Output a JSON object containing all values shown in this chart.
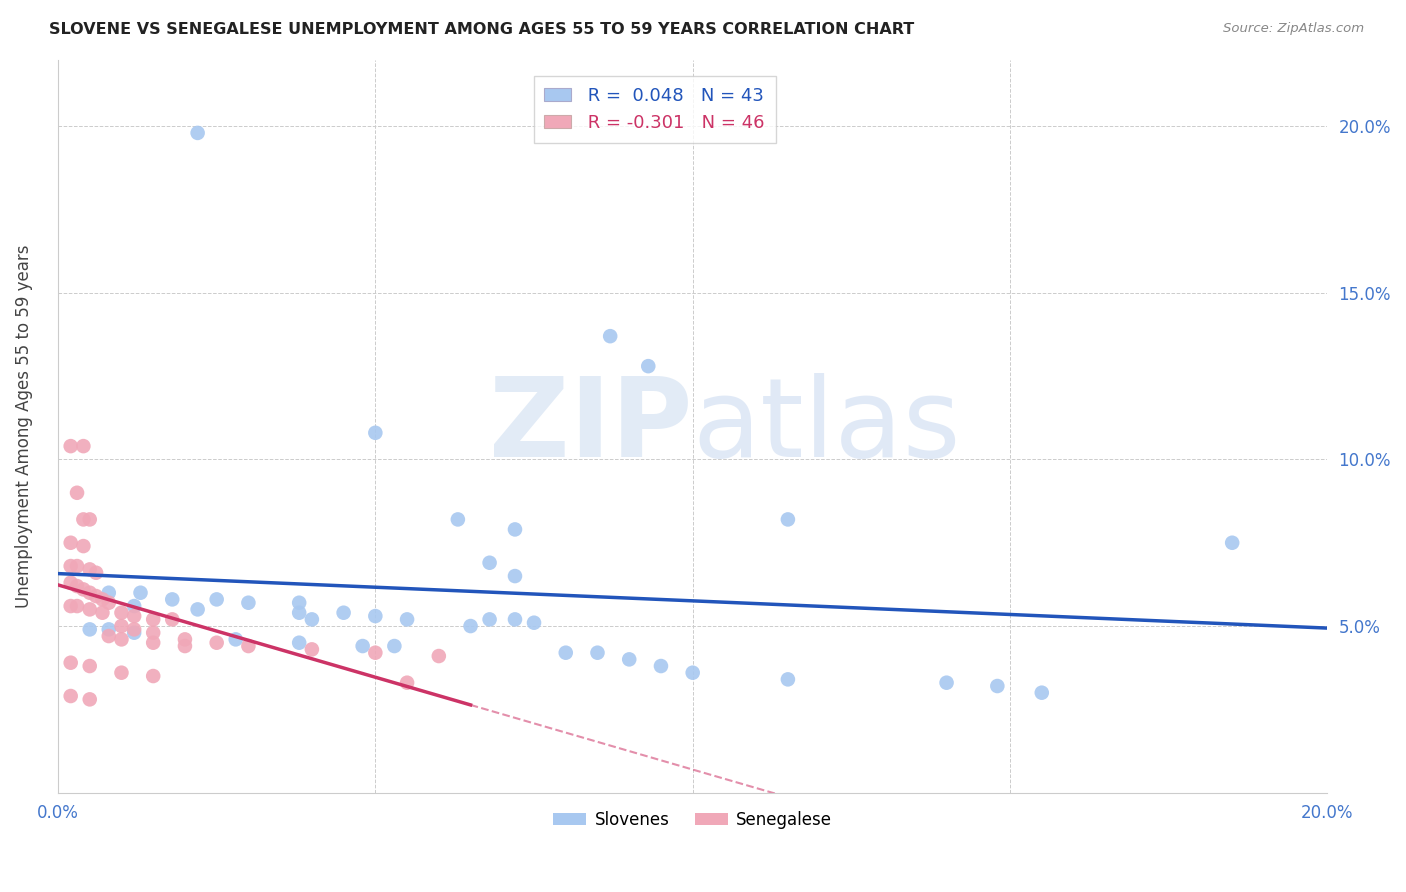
{
  "title": "SLOVENE VS SENEGALESE UNEMPLOYMENT AMONG AGES 55 TO 59 YEARS CORRELATION CHART",
  "source": "Source: ZipAtlas.com",
  "ylabel": "Unemployment Among Ages 55 to 59 years",
  "xlim": [
    0.0,
    0.2
  ],
  "ylim": [
    0.0,
    0.22
  ],
  "background_color": "#ffffff",
  "slovene_color": "#a8c8f0",
  "senegalese_color": "#f0a8b8",
  "slovene_line_color": "#2255bb",
  "senegalese_line_color": "#cc3366",
  "slovene_R": 0.048,
  "slovene_N": 43,
  "senegalese_R": -0.301,
  "senegalese_N": 46,
  "slovene_points": [
    [
      0.022,
      0.198
    ],
    [
      0.05,
      0.108
    ],
    [
      0.087,
      0.137
    ],
    [
      0.093,
      0.128
    ],
    [
      0.063,
      0.082
    ],
    [
      0.072,
      0.079
    ],
    [
      0.115,
      0.082
    ],
    [
      0.068,
      0.069
    ],
    [
      0.072,
      0.065
    ],
    [
      0.008,
      0.06
    ],
    [
      0.013,
      0.06
    ],
    [
      0.018,
      0.058
    ],
    [
      0.025,
      0.058
    ],
    [
      0.03,
      0.057
    ],
    [
      0.038,
      0.057
    ],
    [
      0.012,
      0.056
    ],
    [
      0.022,
      0.055
    ],
    [
      0.038,
      0.054
    ],
    [
      0.045,
      0.054
    ],
    [
      0.05,
      0.053
    ],
    [
      0.055,
      0.052
    ],
    [
      0.065,
      0.05
    ],
    [
      0.005,
      0.049
    ],
    [
      0.008,
      0.049
    ],
    [
      0.012,
      0.048
    ],
    [
      0.028,
      0.046
    ],
    [
      0.038,
      0.045
    ],
    [
      0.048,
      0.044
    ],
    [
      0.053,
      0.044
    ],
    [
      0.08,
      0.042
    ],
    [
      0.085,
      0.042
    ],
    [
      0.09,
      0.04
    ],
    [
      0.095,
      0.038
    ],
    [
      0.1,
      0.036
    ],
    [
      0.115,
      0.034
    ],
    [
      0.14,
      0.033
    ],
    [
      0.148,
      0.032
    ],
    [
      0.185,
      0.075
    ],
    [
      0.068,
      0.052
    ],
    [
      0.072,
      0.052
    ],
    [
      0.075,
      0.051
    ],
    [
      0.04,
      0.052
    ],
    [
      0.155,
      0.03
    ]
  ],
  "senegalese_points": [
    [
      0.002,
      0.104
    ],
    [
      0.004,
      0.104
    ],
    [
      0.003,
      0.09
    ],
    [
      0.004,
      0.082
    ],
    [
      0.005,
      0.082
    ],
    [
      0.002,
      0.075
    ],
    [
      0.004,
      0.074
    ],
    [
      0.002,
      0.068
    ],
    [
      0.003,
      0.068
    ],
    [
      0.005,
      0.067
    ],
    [
      0.006,
      0.066
    ],
    [
      0.002,
      0.063
    ],
    [
      0.003,
      0.062
    ],
    [
      0.004,
      0.061
    ],
    [
      0.005,
      0.06
    ],
    [
      0.006,
      0.059
    ],
    [
      0.007,
      0.058
    ],
    [
      0.008,
      0.057
    ],
    [
      0.002,
      0.056
    ],
    [
      0.003,
      0.056
    ],
    [
      0.005,
      0.055
    ],
    [
      0.007,
      0.054
    ],
    [
      0.01,
      0.054
    ],
    [
      0.012,
      0.053
    ],
    [
      0.015,
      0.052
    ],
    [
      0.018,
      0.052
    ],
    [
      0.01,
      0.05
    ],
    [
      0.012,
      0.049
    ],
    [
      0.015,
      0.048
    ],
    [
      0.008,
      0.047
    ],
    [
      0.02,
      0.046
    ],
    [
      0.025,
      0.045
    ],
    [
      0.03,
      0.044
    ],
    [
      0.04,
      0.043
    ],
    [
      0.05,
      0.042
    ],
    [
      0.06,
      0.041
    ],
    [
      0.002,
      0.039
    ],
    [
      0.005,
      0.038
    ],
    [
      0.01,
      0.036
    ],
    [
      0.015,
      0.035
    ],
    [
      0.055,
      0.033
    ],
    [
      0.002,
      0.029
    ],
    [
      0.005,
      0.028
    ],
    [
      0.02,
      0.044
    ],
    [
      0.01,
      0.046
    ],
    [
      0.015,
      0.045
    ]
  ]
}
